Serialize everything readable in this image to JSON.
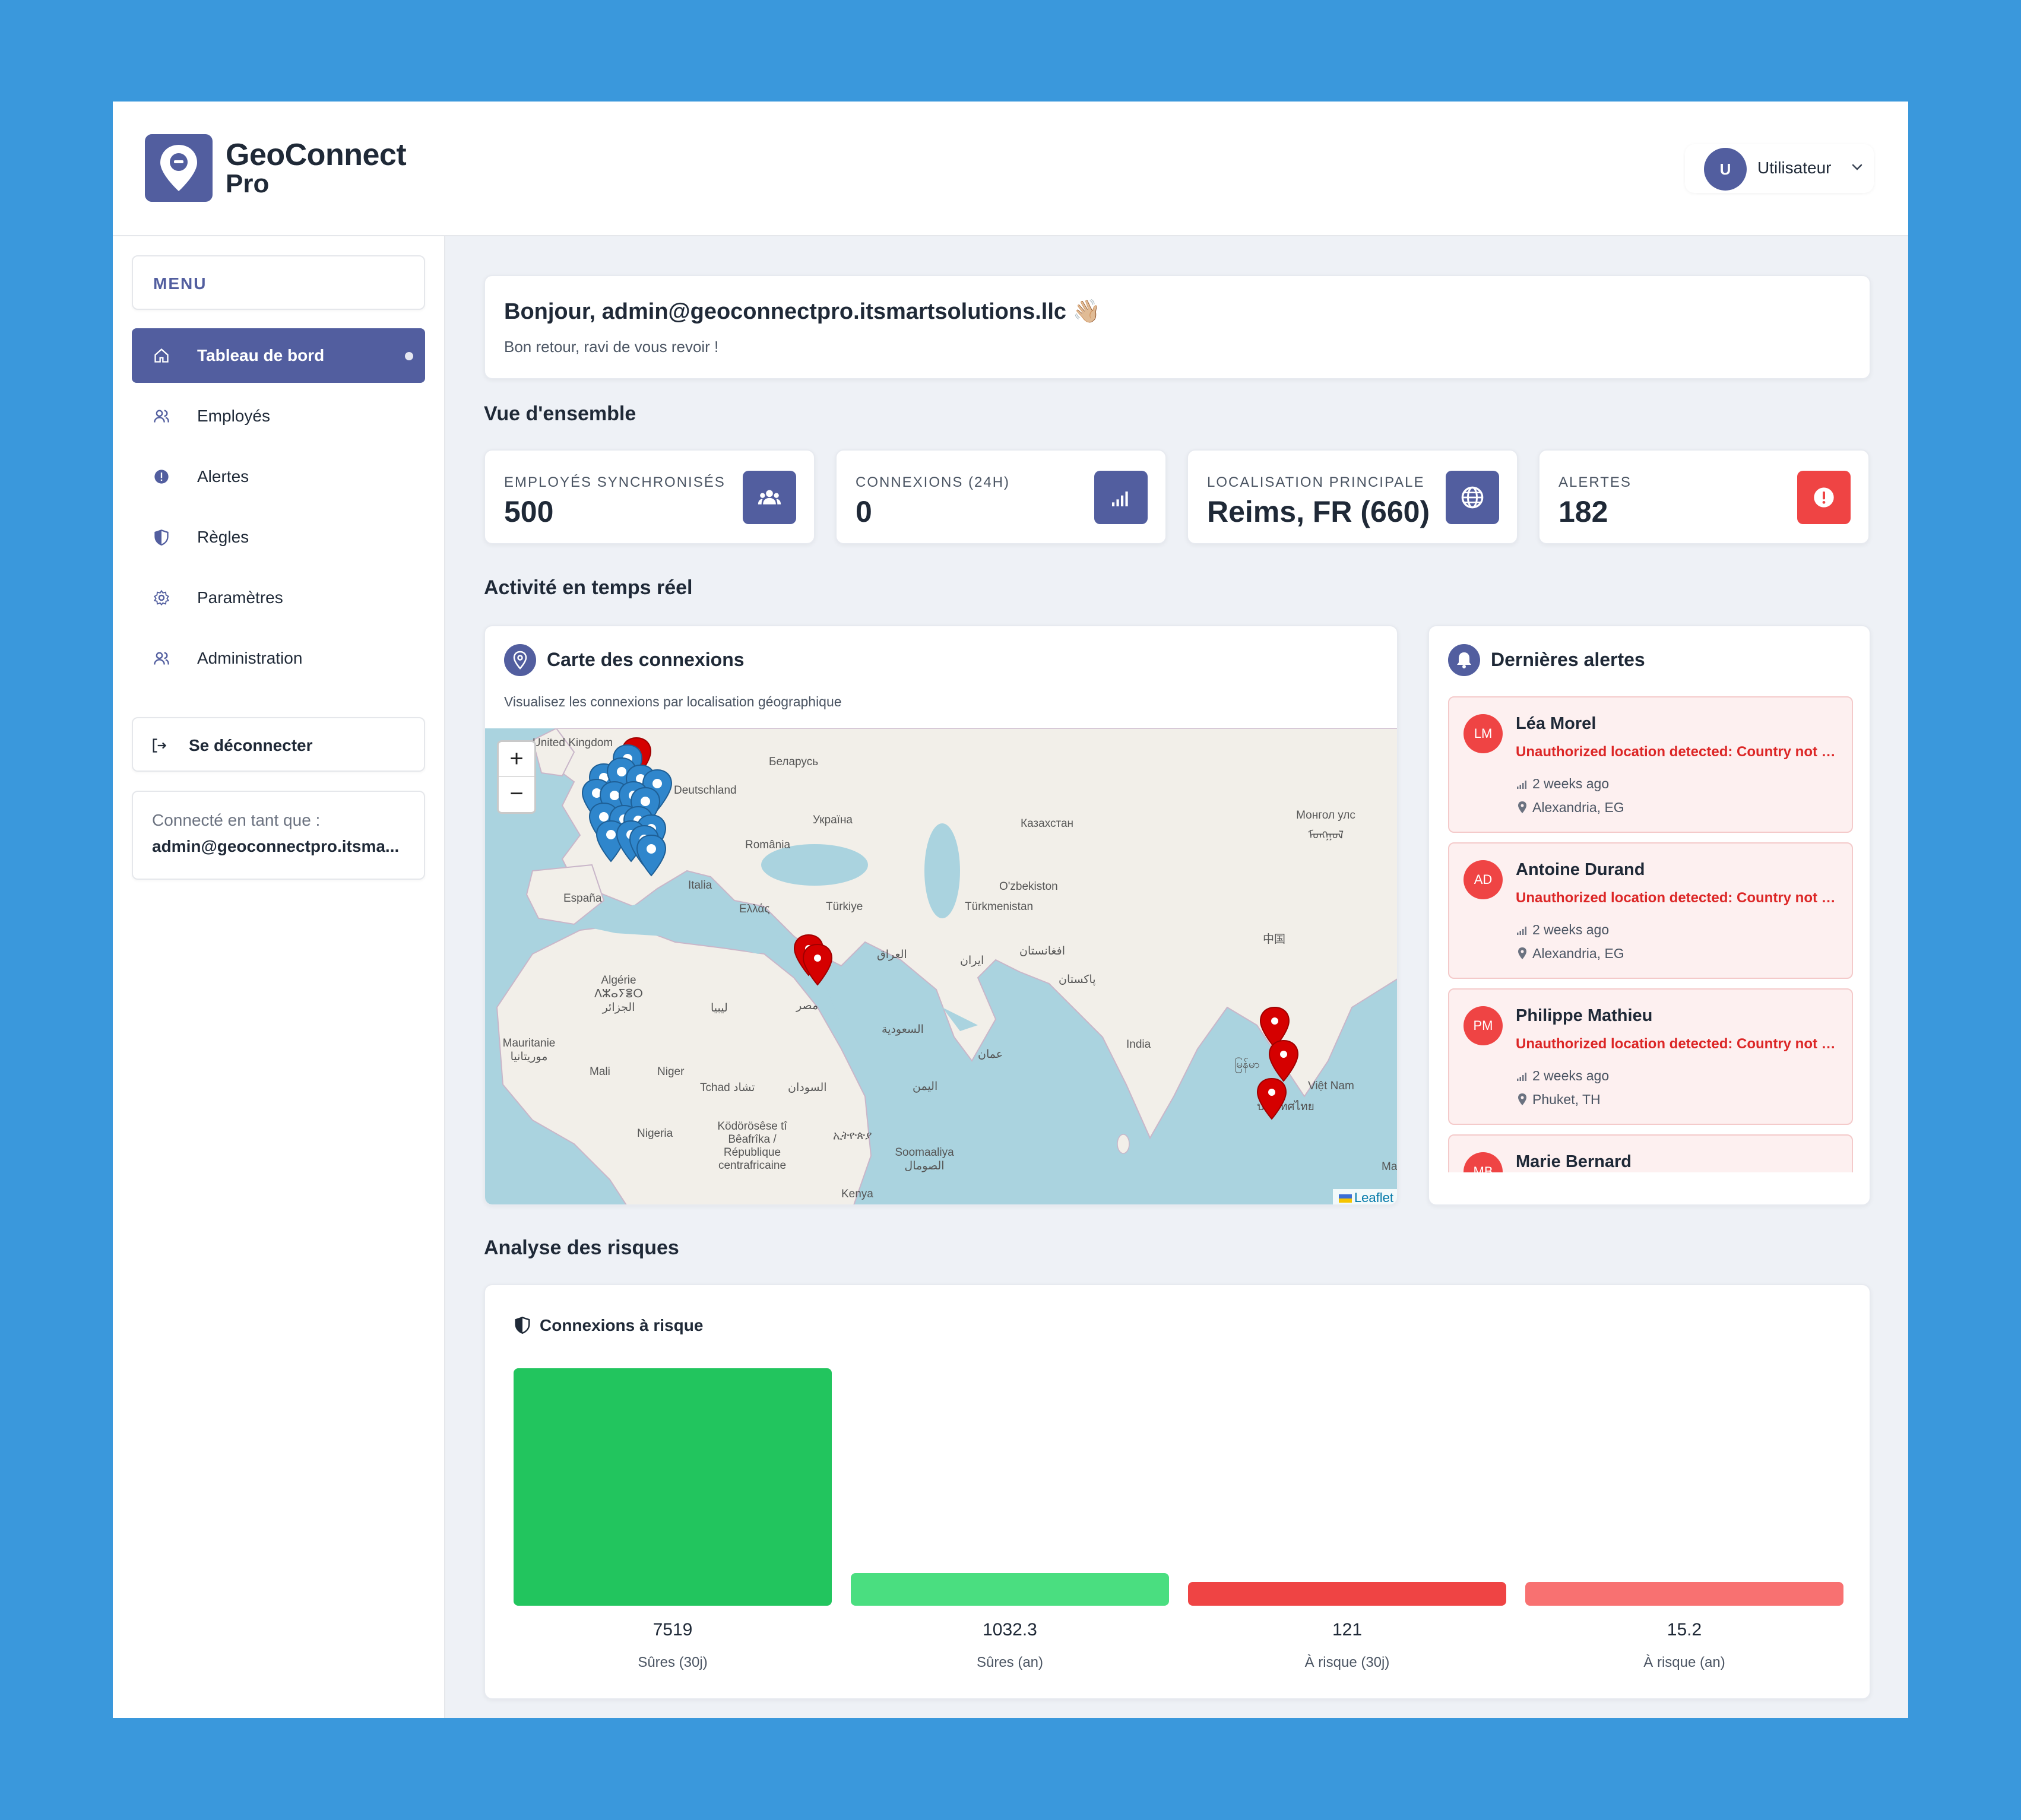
{
  "brand": {
    "line1": "GeoConnect",
    "line2": "Pro"
  },
  "user": {
    "initial": "U",
    "name": "Utilisateur"
  },
  "sidebar": {
    "menu_label": "MENU",
    "items": [
      {
        "label": "Tableau de bord",
        "icon": "home-icon",
        "active": true
      },
      {
        "label": "Employés",
        "icon": "users-icon"
      },
      {
        "label": "Alertes",
        "icon": "alert-circle-icon"
      },
      {
        "label": "Règles",
        "icon": "shield-icon"
      },
      {
        "label": "Paramètres",
        "icon": "gear-icon"
      },
      {
        "label": "Administration",
        "icon": "users-icon"
      }
    ],
    "logout_label": "Se déconnecter",
    "connected_label": "Connecté en tant que :",
    "connected_user": "admin@geoconnectpro.itsma..."
  },
  "greeting": {
    "title": "Bonjour, admin@geoconnectpro.itsmartsolutions.llc 👋🏼",
    "subtitle": "Bon retour, ravi de vous revoir !"
  },
  "overview": {
    "title": "Vue d'ensemble",
    "stats": [
      {
        "label": "EMPLOYÉS SYNCHRONISÉS",
        "value": "500",
        "icon": "users-icon",
        "color": "#525e9f"
      },
      {
        "label": "CONNEXIONS (24H)",
        "value": "0",
        "icon": "signal-icon",
        "color": "#525e9f"
      },
      {
        "label": "LOCALISATION PRINCIPALE",
        "value": "Reims, FR (660)",
        "icon": "globe-icon",
        "color": "#525e9f"
      },
      {
        "label": "ALERTES",
        "value": "182",
        "icon": "alert-icon",
        "color": "#ef4444"
      }
    ]
  },
  "activity": {
    "title": "Activité en temps réel",
    "map": {
      "title": "Carte des connexions",
      "subtitle": "Visualisez les connexions par localisation géographique",
      "zoom_in": "+",
      "zoom_out": "−",
      "attribution": "Leaflet",
      "labels": [
        "United Kingdom",
        "Беларусь",
        "Deutschland",
        "Україна",
        "Казахстан",
        "Монгол улс ᠮᠣᠩᠭᠣᠯ",
        "România",
        "Italia",
        "España",
        "Ελλάς",
        "Türkiye",
        "O'zbekiston",
        "Türkmenistan",
        "中国",
        "العراق",
        "ایران",
        "افغانستان",
        "Algérie ⴷⵣⴰⵢⴻⵔ الجزائر",
        "ليبيا",
        "مصر",
        "پاکستان",
        "السعودية",
        "India",
        "Mauritanie موريتانيا",
        "Mali",
        "Niger",
        "عمان",
        "Tchad تشاد",
        "السودان",
        "اليمن",
        "မြန်မာ",
        "Việt Nam",
        "ประเทศไทย",
        "Nigeria",
        "Ködörösêse tî Bêafrîka / République centrafricaine",
        "ኢትዮጵያ",
        "Soomaaliya الصومال",
        "Kenya",
        "Ma"
      ]
    },
    "alerts": {
      "title": "Dernières alertes",
      "items": [
        {
          "initials": "LM",
          "name": "Léa Morel",
          "message": "Unauthorized location detected: Country not allowed",
          "time": "2 weeks ago",
          "location": "Alexandria, EG"
        },
        {
          "initials": "AD",
          "name": "Antoine Durand",
          "message": "Unauthorized location detected: Country not allowed",
          "time": "2 weeks ago",
          "location": "Alexandria, EG"
        },
        {
          "initials": "PM",
          "name": "Philippe Mathieu",
          "message": "Unauthorized location detected: Country not allowed",
          "time": "2 weeks ago",
          "location": "Phuket, TH"
        },
        {
          "initials": "MB",
          "name": "Marie Bernard",
          "message": "",
          "time": "",
          "location": ""
        }
      ]
    }
  },
  "risk": {
    "title": "Analyse des risques",
    "card_title": "Connexions à risque"
  },
  "chart_data": {
    "type": "bar",
    "categories": [
      "Sûres (30j)",
      "Sûres (an)",
      "À risque (30j)",
      "À risque (an)"
    ],
    "values": [
      7519,
      1032.3,
      121,
      15.2
    ],
    "value_labels": [
      "7519",
      "1032.3",
      "121",
      "15.2"
    ],
    "colors": [
      "#22c55e",
      "#4ade80",
      "#ef4444",
      "#f87171"
    ],
    "ylim": [
      0,
      7519
    ]
  }
}
